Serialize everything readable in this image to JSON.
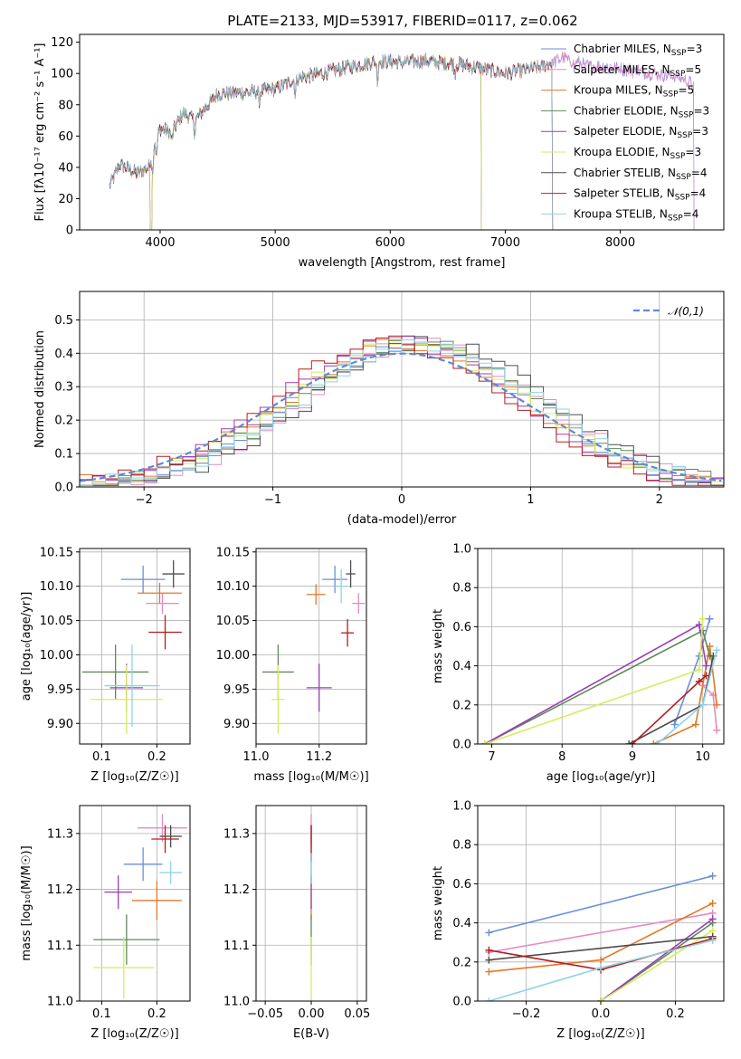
{
  "figure_title": "PLATE=2133, MJD=53917, FIBERID=0117, z=0.062",
  "colors": {
    "Chabrier MILES": "#6a8fd8",
    "Salpeter MILES": "#e68ac3",
    "Kroupa MILES": "#e0792a",
    "Chabrier ELODIE": "#5f8a58",
    "Salpeter ELODIE": "#9b3fb5",
    "Kroupa ELODIE": "#d6ec5c",
    "Chabrier STELIB": "#4d4d4d",
    "Salpeter STELIB": "#b81c1c",
    "Kroupa STELIB": "#8fd3e8"
  },
  "chart_data": [
    {
      "id": "spectrum",
      "type": "line",
      "title": "PLATE=2133, MJD=53917, FIBERID=0117, z=0.062",
      "xlabel": "wavelength [Angstrom, rest frame]",
      "ylabel": "Flux [fλ10⁻¹⁷ erg cm⁻² s⁻¹ A⁻¹]",
      "xlim": [
        3300,
        8900
      ],
      "ylim": [
        0,
        125
      ],
      "xticks": [
        "4000",
        "5000",
        "6000",
        "7000",
        "8000"
      ],
      "yticks": [
        "0",
        "20",
        "40",
        "60",
        "80",
        "100",
        "120"
      ],
      "grid": false,
      "legend_position": "upper-right",
      "envelope_x": [
        3560,
        3650,
        3800,
        3900,
        3950,
        4000,
        4100,
        4200,
        4300,
        4500,
        4800,
        5000,
        5200,
        5400,
        5700,
        5900,
        6100,
        6300,
        6600,
        7000,
        7300,
        7500,
        7700,
        8000,
        8300,
        8500,
        8650
      ],
      "envelope_y": [
        28,
        42,
        36,
        40,
        55,
        65,
        62,
        75,
        70,
        87,
        88,
        90,
        97,
        100,
        105,
        108,
        107,
        108,
        106,
        100,
        104,
        110,
        105,
        103,
        100,
        98,
        92
      ],
      "series": [
        {
          "name": "Chabrier MILES",
          "nssp": "3",
          "x_end": 8650,
          "dip_at": null
        },
        {
          "name": "Salpeter MILES",
          "nssp": "5",
          "x_end": 8650,
          "dip_at": null
        },
        {
          "name": "Kroupa MILES",
          "nssp": "5",
          "x_end": 7420,
          "dip_at": null
        },
        {
          "name": "Chabrier ELODIE",
          "nssp": "3",
          "x_end": 6800,
          "dip_at": 3920
        },
        {
          "name": "Salpeter ELODIE",
          "nssp": "3",
          "x_end": 6800,
          "dip_at": 3920
        },
        {
          "name": "Kroupa ELODIE",
          "nssp": "3",
          "x_end": 6800,
          "dip_at": 3920
        },
        {
          "name": "Chabrier STELIB",
          "nssp": "4",
          "x_end": 7420,
          "dip_at": null
        },
        {
          "name": "Salpeter STELIB",
          "nssp": "4",
          "x_end": 7420,
          "dip_at": null
        },
        {
          "name": "Kroupa STELIB",
          "nssp": "4",
          "x_end": 7420,
          "dip_at": null
        }
      ]
    },
    {
      "id": "residuals",
      "type": "histogram",
      "xlabel": "(data-model)/error",
      "ylabel": "Normed distribution",
      "xlim": [
        -2.5,
        2.5
      ],
      "ylim": [
        0,
        0.585
      ],
      "xticks": [
        "−2",
        "−1",
        "0",
        "1",
        "2"
      ],
      "yticks": [
        "0.0",
        "0.1",
        "0.2",
        "0.3",
        "0.4",
        "0.5"
      ],
      "grid": true,
      "legend_position": "upper-right",
      "legend": "𝒩(0,1)",
      "bin_width": 0.1,
      "series": [
        {
          "name": "Chabrier MILES",
          "shift": 0.08
        },
        {
          "name": "Salpeter MILES",
          "shift": 0.18
        },
        {
          "name": "Kroupa MILES",
          "shift": 0.02
        },
        {
          "name": "Chabrier ELODIE",
          "shift": 0.12
        },
        {
          "name": "Salpeter ELODIE",
          "shift": -0.03
        },
        {
          "name": "Kroupa ELODIE",
          "shift": 0.05
        },
        {
          "name": "Chabrier STELIB",
          "shift": 0.22
        },
        {
          "name": "Salpeter STELIB",
          "shift": -0.08
        },
        {
          "name": "Kroupa STELIB",
          "shift": 0.15
        }
      ]
    },
    {
      "id": "z-age",
      "type": "scatter",
      "xlabel": "Z [log₁₀(Z/Z☉)]",
      "ylabel": "age  [log₁₀(age/yr)]",
      "xlim": [
        0.06,
        0.26
      ],
      "ylim": [
        9.87,
        10.155
      ],
      "xticks": [
        "0.1",
        "0.2"
      ],
      "yticks": [
        "9.90",
        "9.95",
        "10.00",
        "10.05",
        "10.10",
        "10.15"
      ],
      "grid": true,
      "points": [
        {
          "name": "Chabrier MILES",
          "x": 0.175,
          "xerr": 0.04,
          "y": 10.11,
          "yerr": 0.02
        },
        {
          "name": "Salpeter MILES",
          "x": 0.21,
          "xerr": 0.03,
          "y": 10.075,
          "yerr": 0.015
        },
        {
          "name": "Kroupa MILES",
          "x": 0.205,
          "xerr": 0.04,
          "y": 10.09,
          "yerr": 0.015
        },
        {
          "name": "Chabrier ELODIE",
          "x": 0.125,
          "xerr": 0.06,
          "y": 9.975,
          "yerr": 0.04
        },
        {
          "name": "Salpeter ELODIE",
          "x": 0.145,
          "xerr": 0.03,
          "y": 9.952,
          "yerr": 0.035
        },
        {
          "name": "Kroupa ELODIE",
          "x": 0.145,
          "xerr": 0.065,
          "y": 9.935,
          "yerr": 0.05
        },
        {
          "name": "Chabrier STELIB",
          "x": 0.23,
          "xerr": 0.02,
          "y": 10.118,
          "yerr": 0.02
        },
        {
          "name": "Salpeter STELIB",
          "x": 0.215,
          "xerr": 0.03,
          "y": 10.033,
          "yerr": 0.025
        },
        {
          "name": "Kroupa STELIB",
          "x": 0.155,
          "xerr": 0.05,
          "y": 9.955,
          "yerr": 0.06
        }
      ]
    },
    {
      "id": "mass-age",
      "type": "scatter",
      "xlabel": "mass [log₁₀(M/M☉)]",
      "ylabel": "",
      "xlim": [
        11.0,
        11.35
      ],
      "ylim": [
        9.87,
        10.155
      ],
      "xticks": [
        "11.0",
        "11.2"
      ],
      "yticks": [
        "9.90",
        "9.95",
        "10.00",
        "10.05",
        "10.10",
        "10.15"
      ],
      "grid": true,
      "points": [
        {
          "name": "Chabrier MILES",
          "x": 11.25,
          "xerr": 0.04,
          "y": 10.11,
          "yerr": 0.02
        },
        {
          "name": "Salpeter MILES",
          "x": 11.325,
          "xerr": 0.02,
          "y": 10.075,
          "yerr": 0.015
        },
        {
          "name": "Kroupa MILES",
          "x": 11.19,
          "xerr": 0.03,
          "y": 10.088,
          "yerr": 0.015
        },
        {
          "name": "Chabrier ELODIE",
          "x": 11.07,
          "xerr": 0.05,
          "y": 9.975,
          "yerr": 0.04
        },
        {
          "name": "Salpeter ELODIE",
          "x": 11.2,
          "xerr": 0.04,
          "y": 9.952,
          "yerr": 0.035
        },
        {
          "name": "Kroupa ELODIE",
          "x": 11.07,
          "xerr": 0.02,
          "y": 9.935,
          "yerr": 0.05
        },
        {
          "name": "Chabrier STELIB",
          "x": 11.3,
          "xerr": 0.015,
          "y": 10.118,
          "yerr": 0.02
        },
        {
          "name": "Salpeter STELIB",
          "x": 11.29,
          "xerr": 0.02,
          "y": 10.032,
          "yerr": 0.02
        },
        {
          "name": "Kroupa STELIB",
          "x": 11.27,
          "xerr": 0.02,
          "y": 10.1,
          "yerr": 0.025
        }
      ]
    },
    {
      "id": "age-weight",
      "type": "line",
      "xlabel": "age  [log₁₀(age/yr)]",
      "ylabel": "mass weight",
      "xlim": [
        6.8,
        10.3
      ],
      "ylim": [
        0,
        1
      ],
      "xticks": [
        "7",
        "8",
        "9",
        "10"
      ],
      "yticks": [
        "0.0",
        "0.2",
        "0.4",
        "0.6",
        "0.8",
        "1.0"
      ],
      "grid": true,
      "series": [
        {
          "name": "Chabrier MILES",
          "x": [
            9.6,
            9.95,
            10.1
          ],
          "y": [
            0.1,
            0.45,
            0.64
          ]
        },
        {
          "name": "Salpeter MILES",
          "x": [
            10.0,
            10.15,
            10.2
          ],
          "y": [
            0.3,
            0.25,
            0.07
          ]
        },
        {
          "name": "Kroupa MILES",
          "x": [
            9.3,
            9.9,
            10.1,
            10.2
          ],
          "y": [
            0.0,
            0.1,
            0.5,
            0.2
          ]
        },
        {
          "name": "Chabrier ELODIE",
          "x": [
            6.9,
            10.0,
            10.1
          ],
          "y": [
            0.0,
            0.58,
            0.45
          ]
        },
        {
          "name": "Salpeter ELODIE",
          "x": [
            6.9,
            9.95,
            10.05
          ],
          "y": [
            0.0,
            0.61,
            0.4
          ]
        },
        {
          "name": "Kroupa ELODIE",
          "x": [
            6.9,
            9.95,
            10.0
          ],
          "y": [
            0.0,
            0.38,
            0.64
          ]
        },
        {
          "name": "Chabrier STELIB",
          "x": [
            8.95,
            10.0,
            10.15
          ],
          "y": [
            0.0,
            0.2,
            0.45
          ]
        },
        {
          "name": "Salpeter STELIB",
          "x": [
            9.0,
            9.95,
            10.05
          ],
          "y": [
            0.0,
            0.32,
            0.35
          ]
        },
        {
          "name": "Kroupa STELIB",
          "x": [
            9.35,
            10.0,
            10.2
          ],
          "y": [
            0.0,
            0.2,
            0.48
          ]
        }
      ]
    },
    {
      "id": "z-mass",
      "type": "scatter",
      "xlabel": "Z [log₁₀(Z/Z☉)]",
      "ylabel": "mass [log₁₀(M/M☉)]",
      "xlim": [
        0.06,
        0.26
      ],
      "ylim": [
        11.0,
        11.35
      ],
      "xticks": [
        "0.1",
        "0.2"
      ],
      "yticks": [
        "11.0",
        "11.1",
        "11.2",
        "11.3"
      ],
      "grid": true,
      "points": [
        {
          "name": "Chabrier MILES",
          "x": 0.175,
          "xerr": 0.035,
          "y": 11.245,
          "yerr": 0.03
        },
        {
          "name": "Salpeter MILES",
          "x": 0.21,
          "xerr": 0.045,
          "y": 11.31,
          "yerr": 0.025
        },
        {
          "name": "Kroupa MILES",
          "x": 0.2,
          "xerr": 0.045,
          "y": 11.18,
          "yerr": 0.035
        },
        {
          "name": "Chabrier ELODIE",
          "x": 0.145,
          "xerr": 0.06,
          "y": 11.11,
          "yerr": 0.045
        },
        {
          "name": "Salpeter ELODIE",
          "x": 0.13,
          "xerr": 0.025,
          "y": 11.195,
          "yerr": 0.03
        },
        {
          "name": "Kroupa ELODIE",
          "x": 0.14,
          "xerr": 0.055,
          "y": 11.06,
          "yerr": 0.055
        },
        {
          "name": "Chabrier STELIB",
          "x": 0.225,
          "xerr": 0.02,
          "y": 11.295,
          "yerr": 0.02
        },
        {
          "name": "Salpeter STELIB",
          "x": 0.215,
          "xerr": 0.025,
          "y": 11.29,
          "yerr": 0.025
        },
        {
          "name": "Kroupa STELIB",
          "x": 0.225,
          "xerr": 0.02,
          "y": 11.23,
          "yerr": 0.02
        }
      ]
    },
    {
      "id": "ebv-mass",
      "type": "scatter",
      "xlabel": "E(B-V)",
      "ylabel": "",
      "xlim": [
        -0.06,
        0.06
      ],
      "ylim": [
        11.0,
        11.35
      ],
      "xticks": [
        "−0.05",
        "0.00",
        "0.05"
      ],
      "yticks": [
        "11.0",
        "11.1",
        "11.2",
        "11.3"
      ],
      "grid": true,
      "points": [
        {
          "name": "Chabrier MILES",
          "x": 0,
          "xerr": 0.0005,
          "y": 11.245,
          "yerr": 0.03
        },
        {
          "name": "Salpeter MILES",
          "x": 0,
          "xerr": 0.0005,
          "y": 11.31,
          "yerr": 0.025
        },
        {
          "name": "Kroupa MILES",
          "x": 0,
          "xerr": 0.0005,
          "y": 11.18,
          "yerr": 0.035
        },
        {
          "name": "Chabrier ELODIE",
          "x": 0,
          "xerr": 0.0005,
          "y": 11.11,
          "yerr": 0.045
        },
        {
          "name": "Salpeter ELODIE",
          "x": 0,
          "xerr": 0.0005,
          "y": 11.195,
          "yerr": 0.03
        },
        {
          "name": "Kroupa ELODIE",
          "x": 0,
          "xerr": 0.0005,
          "y": 11.06,
          "yerr": 0.055
        },
        {
          "name": "Chabrier STELIB",
          "x": 0,
          "xerr": 0.0005,
          "y": 11.295,
          "yerr": 0.02
        },
        {
          "name": "Salpeter STELIB",
          "x": 0,
          "xerr": 0.0005,
          "y": 11.29,
          "yerr": 0.025
        },
        {
          "name": "Kroupa STELIB",
          "x": 0,
          "xerr": 0.0005,
          "y": 11.23,
          "yerr": 0.02
        }
      ]
    },
    {
      "id": "z-weight",
      "type": "line",
      "xlabel": "Z [log₁₀(Z/Z☉)]",
      "ylabel": "mass weight",
      "xlim": [
        -0.33,
        0.33
      ],
      "ylim": [
        0,
        1
      ],
      "xticks": [
        "−0.2",
        "0.0",
        "0.2"
      ],
      "yticks": [
        "0.0",
        "0.2",
        "0.4",
        "0.6",
        "0.8",
        "1.0"
      ],
      "grid": true,
      "series": [
        {
          "name": "Chabrier MILES",
          "x": [
            -0.3,
            0.3
          ],
          "y": [
            0.35,
            0.64
          ]
        },
        {
          "name": "Salpeter MILES",
          "x": [
            -0.3,
            0.3
          ],
          "y": [
            0.25,
            0.45
          ]
        },
        {
          "name": "Kroupa MILES",
          "x": [
            -0.3,
            0.0,
            0.3
          ],
          "y": [
            0.15,
            0.21,
            0.5
          ]
        },
        {
          "name": "Chabrier ELODIE",
          "x": [
            0.0,
            0.3
          ],
          "y": [
            0.0,
            0.4
          ]
        },
        {
          "name": "Salpeter ELODIE",
          "x": [
            0.0,
            0.3
          ],
          "y": [
            0.0,
            0.42
          ]
        },
        {
          "name": "Kroupa ELODIE",
          "x": [
            0.0,
            0.3
          ],
          "y": [
            0.0,
            0.36
          ]
        },
        {
          "name": "Chabrier STELIB",
          "x": [
            -0.3,
            0.3
          ],
          "y": [
            0.21,
            0.33
          ]
        },
        {
          "name": "Salpeter STELIB",
          "x": [
            -0.3,
            0.0,
            0.3
          ],
          "y": [
            0.26,
            0.16,
            0.32
          ]
        },
        {
          "name": "Kroupa STELIB",
          "x": [
            -0.3,
            0.0,
            0.3
          ],
          "y": [
            0.0,
            0.17,
            0.31
          ]
        }
      ]
    }
  ]
}
